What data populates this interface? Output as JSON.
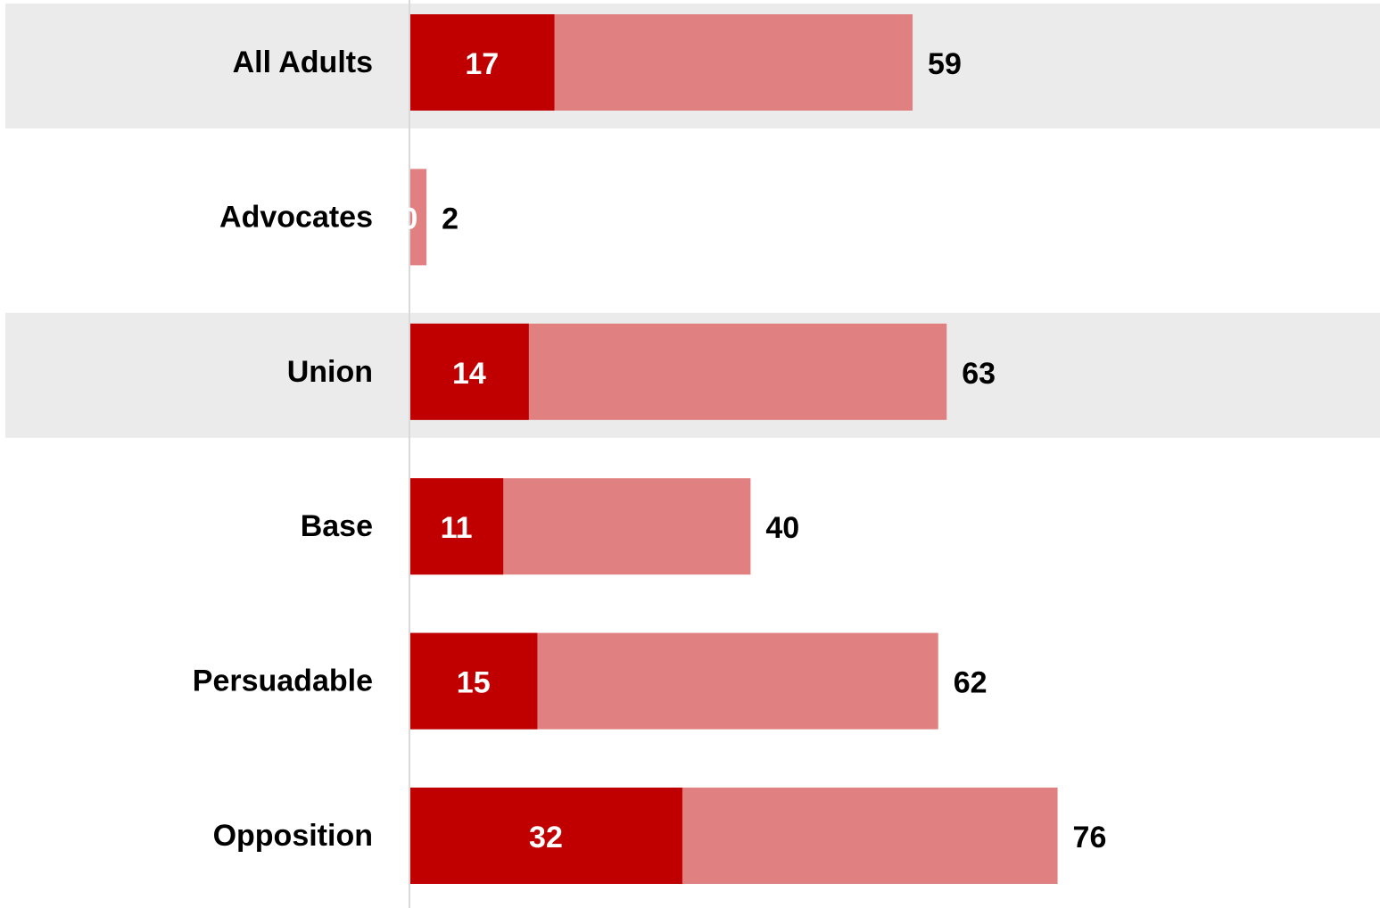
{
  "chart_data": {
    "type": "bar",
    "orientation": "horizontal",
    "stacking": "overlay",
    "categories": [
      "All Adults",
      "Advocates",
      "Union",
      "Base",
      "Persuadable",
      "Opposition"
    ],
    "series": [
      {
        "values": [
          59,
          2,
          63,
          40,
          62,
          76
        ],
        "color": "#e08080"
      },
      {
        "values": [
          17,
          0,
          14,
          11,
          15,
          32
        ],
        "color": "#c00000"
      }
    ],
    "shaded_rows": [
      0,
      2
    ],
    "xlim": [
      0,
      100
    ],
    "grid": false,
    "legend": "none",
    "colors": {
      "shade": "#ebebeb",
      "axis": "#d9d9d9",
      "inner_text": "#ffffff",
      "text": "#000000"
    }
  }
}
